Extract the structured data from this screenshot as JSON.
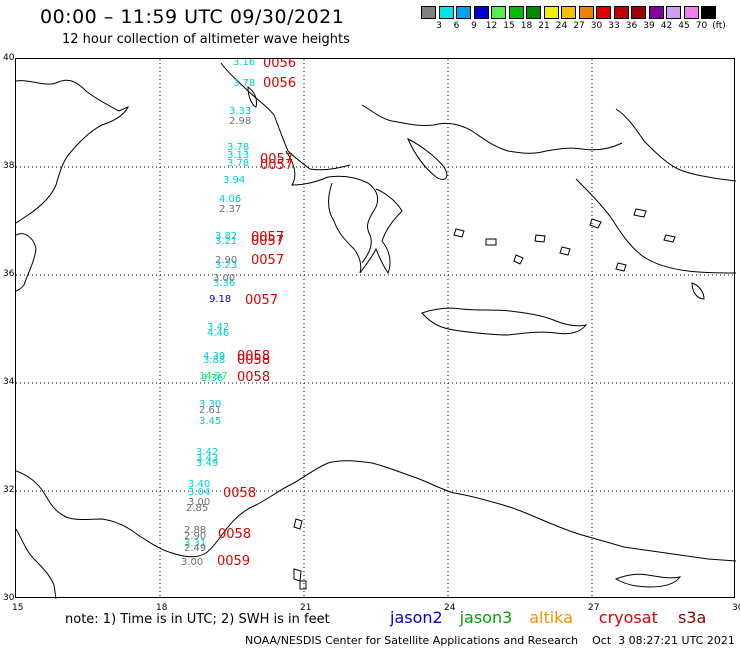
{
  "header": {
    "title": "00:00 – 11:59 UTC 09/30/2021",
    "subtitle": "12 hour collection of altimeter wave heights"
  },
  "color_scale": {
    "colors": [
      "#808080",
      "#00e5e5",
      "#00a0f0",
      "#0000d0",
      "#55ee55",
      "#00c000",
      "#008800",
      "#f0f000",
      "#f0c000",
      "#f08000",
      "#e00000",
      "#c00000",
      "#a00000",
      "#8000a0",
      "#d0a0f0",
      "#f080f0",
      "#000000"
    ],
    "labels": [
      "3",
      "6",
      "9",
      "12",
      "15",
      "18",
      "21",
      "24",
      "27",
      "30",
      "33",
      "36",
      "39",
      "42",
      "45",
      "70",
      "(ft)"
    ]
  },
  "axes": {
    "longitudes": [
      "15",
      "18",
      "21",
      "24",
      "27",
      "30"
    ],
    "latitudes": [
      "40",
      "38",
      "36",
      "34",
      "32",
      "30"
    ]
  },
  "observations": [
    {
      "v": "3.16",
      "c": "#00d0d0"
    },
    {
      "v": "3.78",
      "c": "#00d0d0"
    },
    {
      "v": "3.33",
      "c": "#00d0d0"
    },
    {
      "v": "2.98",
      "c": "#707070"
    },
    {
      "v": "3.78",
      "c": "#00d0d0"
    },
    {
      "v": "3.13",
      "c": "#00d0d0"
    },
    {
      "v": "3.78",
      "c": "#00d0d0"
    },
    {
      "v": "3.94",
      "c": "#00d0d0"
    },
    {
      "v": "4.06",
      "c": "#00d0d0"
    },
    {
      "v": "2.37",
      "c": "#707070"
    },
    {
      "v": "3.82",
      "c": "#00d0d0"
    },
    {
      "v": "3.21",
      "c": "#00d0d0"
    },
    {
      "v": "2.90",
      "c": "#707070"
    },
    {
      "v": "3.23",
      "c": "#00d0d0"
    },
    {
      "v": "3.00",
      "c": "#707070"
    },
    {
      "v": "3.36",
      "c": "#00d0d0"
    },
    {
      "v": "9.18",
      "c": "#0000c0"
    },
    {
      "v": "3.42",
      "c": "#00d0d0"
    },
    {
      "v": "4.46",
      "c": "#00d0d0"
    },
    {
      "v": "4.39",
      "c": "#00d0d0"
    },
    {
      "v": "3.88",
      "c": "#00d0d0"
    },
    {
      "v": "14.97",
      "c": "#40e040"
    },
    {
      "v": "3.36",
      "c": "#00d0d0"
    },
    {
      "v": "3.30",
      "c": "#00d0d0"
    },
    {
      "v": "2.61",
      "c": "#707070"
    },
    {
      "v": "3.45",
      "c": "#00d0d0"
    },
    {
      "v": "3.42",
      "c": "#00d0d0"
    },
    {
      "v": "3.43",
      "c": "#00d0d0"
    },
    {
      "v": "3.49",
      "c": "#00d0d0"
    },
    {
      "v": "3.40",
      "c": "#00d0d0"
    },
    {
      "v": "3.04",
      "c": "#00d0d0"
    },
    {
      "v": "3.00",
      "c": "#707070"
    },
    {
      "v": "2.85",
      "c": "#707070"
    },
    {
      "v": "2.88",
      "c": "#707070"
    },
    {
      "v": "2.90",
      "c": "#707070"
    },
    {
      "v": "3.31",
      "c": "#00d0d0"
    },
    {
      "v": "2.49",
      "c": "#707070"
    },
    {
      "v": "3.00",
      "c": "#707070"
    }
  ],
  "time_labels": [
    "0056",
    "0056",
    "0057",
    "0057",
    "0057",
    "0057",
    "0057",
    "0057",
    "0058",
    "0058",
    "0058",
    "0058",
    "0058",
    "0059"
  ],
  "footer": {
    "note": "note:  1) Time is in UTC;  2) SWH is in feet",
    "satellites": [
      {
        "name": "jason2",
        "color": "#0000dd"
      },
      {
        "name": "jason3",
        "color": "#00a000"
      },
      {
        "name": "altika",
        "color": "#ff8c00"
      },
      {
        "name": "cryosat",
        "color": "#e00000"
      },
      {
        "name": "s3a",
        "color": "#880000"
      }
    ],
    "credit": "NOAA/NESDIS Center for Satellite Applications and Research    Oct  3 08:27:21 UTC 2021"
  }
}
